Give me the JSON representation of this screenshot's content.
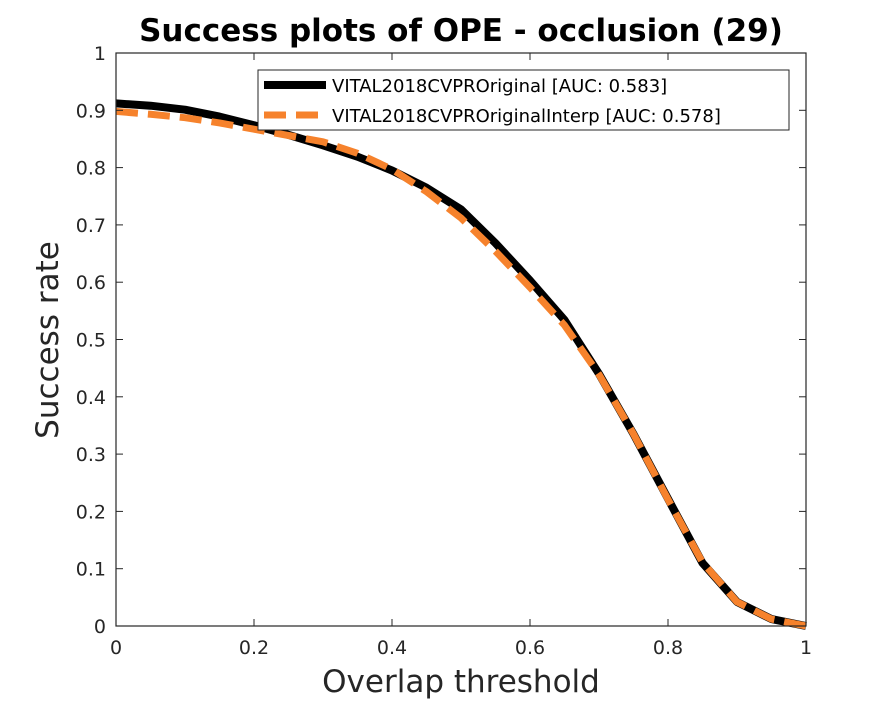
{
  "chart_data": {
    "type": "line",
    "title": "Success plots of OPE - occlusion (29)",
    "xlabel": "Overlap threshold",
    "ylabel": "Success rate",
    "xlim": [
      0,
      1
    ],
    "ylim": [
      0,
      1
    ],
    "xticks": [
      "0",
      "0.2",
      "0.4",
      "0.6",
      "0.8",
      "1"
    ],
    "yticks": [
      "0",
      "0.1",
      "0.2",
      "0.3",
      "0.4",
      "0.5",
      "0.6",
      "0.7",
      "0.8",
      "0.9",
      "1"
    ],
    "grid": false,
    "legend_position": "top-right",
    "x": [
      0,
      0.05,
      0.1,
      0.15,
      0.2,
      0.25,
      0.3,
      0.35,
      0.4,
      0.45,
      0.5,
      0.55,
      0.6,
      0.65,
      0.7,
      0.75,
      0.8,
      0.85,
      0.9,
      0.95,
      1.0
    ],
    "series": [
      {
        "name": "VITAL2018CVPROriginal [AUC: 0.583]",
        "color": "#000000",
        "style": "solid",
        "values": [
          0.912,
          0.908,
          0.901,
          0.889,
          0.874,
          0.857,
          0.839,
          0.819,
          0.795,
          0.765,
          0.727,
          0.668,
          0.603,
          0.534,
          0.44,
          0.335,
          0.222,
          0.11,
          0.042,
          0.012,
          0.0
        ]
      },
      {
        "name": "VITAL2018CVPROriginalInterp [AUC: 0.578]",
        "color": "#F6822C",
        "style": "dashed",
        "values": [
          0.898,
          0.893,
          0.887,
          0.878,
          0.867,
          0.856,
          0.845,
          0.825,
          0.797,
          0.758,
          0.712,
          0.654,
          0.591,
          0.525,
          0.439,
          0.335,
          0.221,
          0.111,
          0.042,
          0.012,
          0.0
        ]
      }
    ]
  }
}
